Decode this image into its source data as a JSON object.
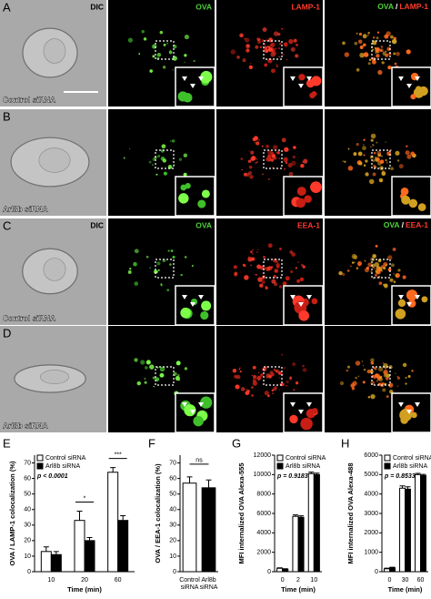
{
  "image_panels": [
    {
      "letter": "A",
      "condition": "Control siRNA",
      "channel_labels": [
        "DIC",
        "OVA",
        "LAMP-1"
      ],
      "merge_label": [
        "OVA",
        "/",
        "LAMP-1"
      ]
    },
    {
      "letter": "B",
      "condition": "Arl8b siRNA"
    },
    {
      "letter": "C",
      "condition": "Control siRNA",
      "channel_labels": [
        "DIC",
        "OVA",
        "EEA-1"
      ],
      "merge_label": [
        "OVA",
        "/",
        "EEA-1"
      ]
    },
    {
      "letter": "D",
      "condition": "Arl8b siRNA"
    }
  ],
  "chart_data": [
    {
      "type": "bar",
      "letter": "E",
      "ylabel": "OVA / LAMP-1 colocalization (%)",
      "xlabel": "Time (min)",
      "categories": [
        "10",
        "20",
        "60"
      ],
      "series": [
        {
          "name": "Control siRNA",
          "color": "#ffffff",
          "values": [
            13,
            33,
            64
          ],
          "errors": [
            3,
            6,
            3
          ]
        },
        {
          "name": "Arl8b siRNA",
          "color": "#000000",
          "values": [
            11,
            20,
            33
          ],
          "errors": [
            2,
            2,
            3
          ]
        }
      ],
      "ylim": [
        0,
        75
      ],
      "yticks": [
        0,
        10,
        20,
        30,
        40,
        50,
        60,
        70
      ],
      "p_value": "p < 0.0001",
      "significance": [
        "*",
        "***"
      ]
    },
    {
      "type": "bar",
      "letter": "F",
      "ylabel": "OVA / EEA-1 colocalization (%)",
      "categories": [
        "Control siRNA",
        "Arl8b siRNA"
      ],
      "values": [
        57,
        54
      ],
      "errors": [
        4,
        5
      ],
      "colors": [
        "#ffffff",
        "#000000"
      ],
      "ylim": [
        0,
        75
      ],
      "yticks": [
        0,
        10,
        20,
        30,
        40,
        50,
        60,
        70
      ],
      "significance": [
        "ns"
      ]
    },
    {
      "type": "bar",
      "letter": "G",
      "ylabel": "MFI internalized OVA Alexa-555",
      "xlabel": "Time (min)",
      "categories": [
        "0",
        "2",
        "10"
      ],
      "series": [
        {
          "name": "Control siRNA",
          "color": "#ffffff",
          "values": [
            350,
            5700,
            10100
          ],
          "errors": [
            50,
            150,
            150
          ]
        },
        {
          "name": "Arl8b siRNA",
          "color": "#000000",
          "values": [
            250,
            5600,
            10000
          ],
          "errors": [
            50,
            150,
            150
          ]
        }
      ],
      "ylim": [
        0,
        12000
      ],
      "yticks": [
        0,
        2000,
        4000,
        6000,
        8000,
        10000,
        12000
      ],
      "p_value": "p = 0.9183"
    },
    {
      "type": "bar",
      "letter": "H",
      "ylabel": "MFI internalized OVA Alexa-488",
      "xlabel": "Time (min)",
      "categories": [
        "0",
        "30",
        "60"
      ],
      "series": [
        {
          "name": "Control siRNA",
          "color": "#ffffff",
          "values": [
            150,
            4300,
            5000
          ],
          "errors": [
            30,
            120,
            60
          ]
        },
        {
          "name": "Arl8b siRNA",
          "color": "#000000",
          "values": [
            200,
            4250,
            4950
          ],
          "errors": [
            30,
            120,
            60
          ]
        }
      ],
      "ylim": [
        0,
        6000
      ],
      "yticks": [
        0,
        1000,
        2000,
        3000,
        4000,
        5000,
        6000
      ],
      "p_value": "p = 0.8533"
    }
  ]
}
